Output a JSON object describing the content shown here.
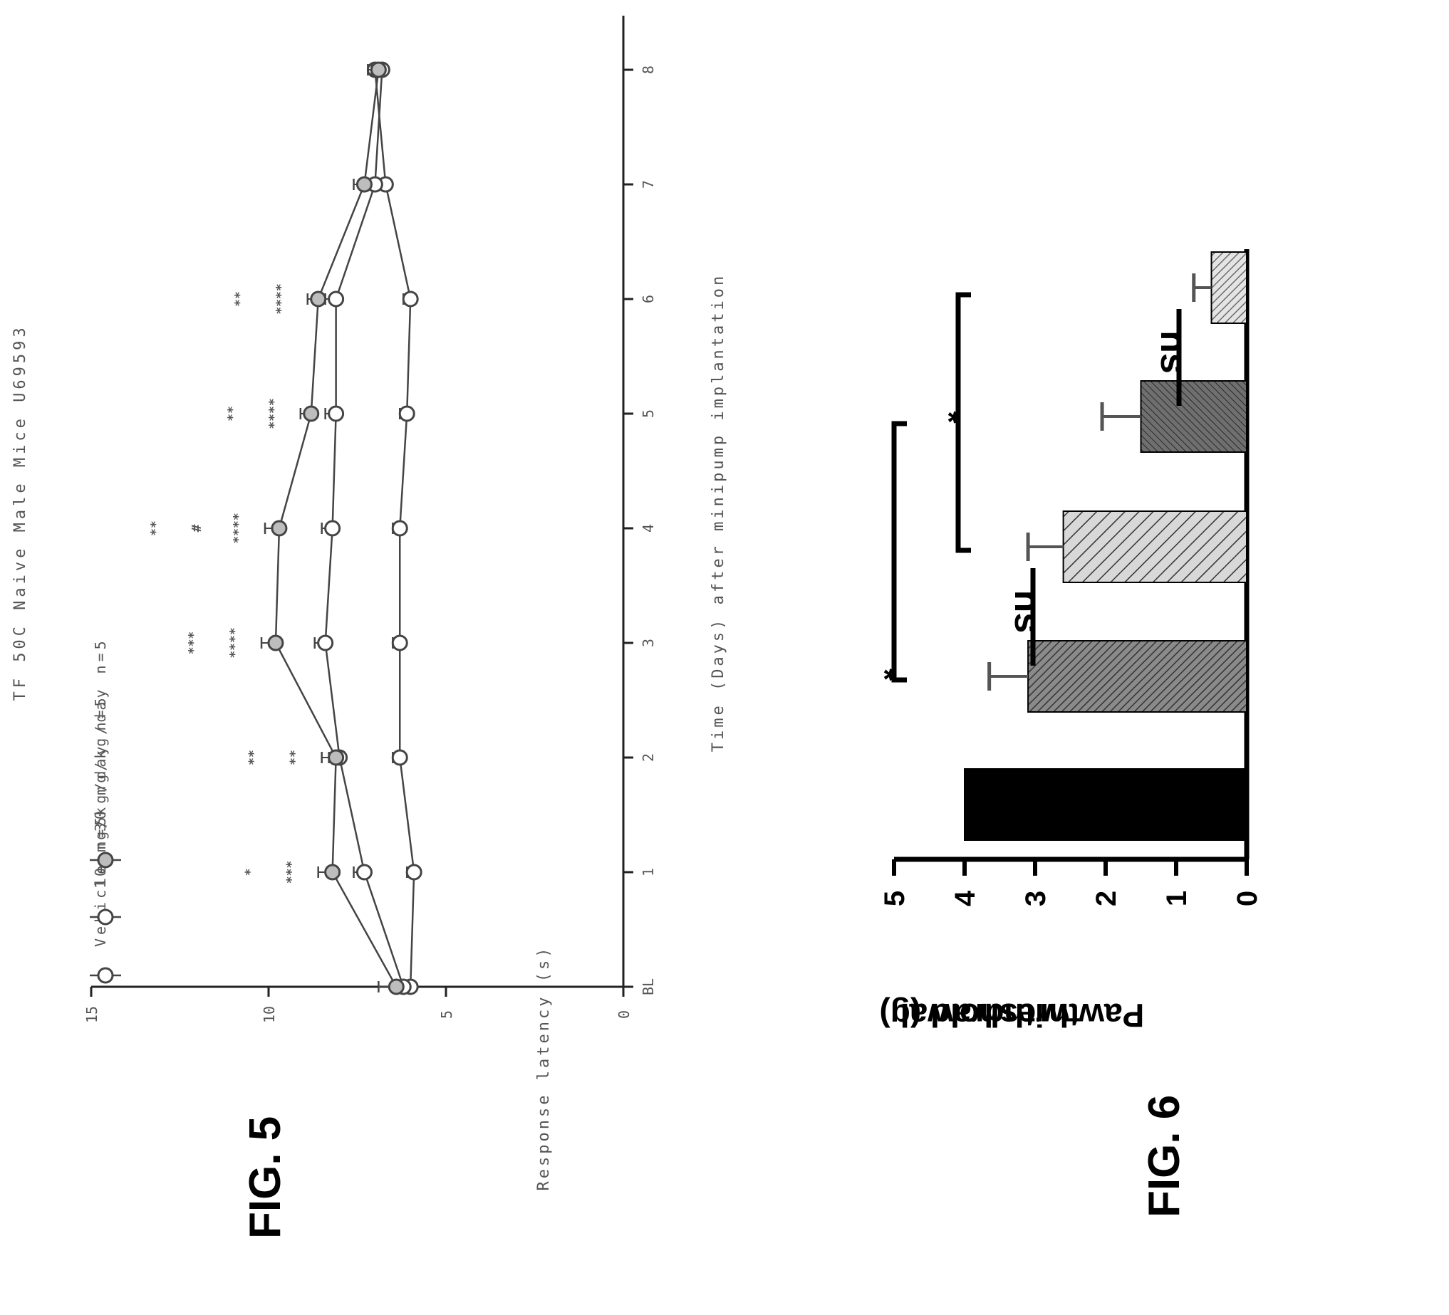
{
  "figures": {
    "fig5_label": "FIG. 5",
    "fig6_label": "FIG. 6"
  },
  "chart_data": [
    {
      "type": "line",
      "title": "TF 50C Naive Male Mice U69593",
      "xlabel": "Time (Days) after minipump implantation",
      "ylabel": "Response latency (s)",
      "ylim": [
        0,
        15
      ],
      "yticks": [
        "0",
        "5",
        "10",
        "15"
      ],
      "x": [
        "BL",
        "1",
        "2",
        "3",
        "4",
        "5",
        "6",
        "7",
        "8"
      ],
      "legend_placement": "top-left",
      "series": [
        {
          "name": "Vehicle n=5",
          "values": [
            6.0,
            5.9,
            6.3,
            6.3,
            6.3,
            6.1,
            6.0,
            6.7,
            7.0
          ],
          "errors": [
            0.2,
            0.2,
            0.2,
            0.2,
            0.2,
            0.2,
            0.2,
            0.2,
            0.2
          ]
        },
        {
          "name": "10 mg/kg/day n=5",
          "values": [
            6.2,
            7.3,
            8.0,
            8.4,
            8.2,
            8.1,
            8.1,
            7.0,
            6.8
          ],
          "errors": [
            0.2,
            0.3,
            0.3,
            0.3,
            0.3,
            0.3,
            0.3,
            0.3,
            0.3
          ]
        },
        {
          "name": "30 mg/kg/day n=5",
          "values": [
            6.4,
            8.2,
            8.1,
            9.8,
            9.7,
            8.8,
            8.6,
            7.3,
            6.9
          ],
          "errors": [
            0.5,
            0.4,
            0.4,
            0.4,
            0.4,
            0.3,
            0.3,
            0.3,
            0.3
          ]
        }
      ],
      "annotations": [
        {
          "x": "1",
          "text": "***"
        },
        {
          "x": "1",
          "text": "*"
        },
        {
          "x": "2",
          "text": "**"
        },
        {
          "x": "2",
          "text": "**"
        },
        {
          "x": "3",
          "text": "****"
        },
        {
          "x": "3",
          "text": "***"
        },
        {
          "x": "4",
          "text": "****"
        },
        {
          "x": "4",
          "text": "#"
        },
        {
          "x": "4",
          "text": "**"
        },
        {
          "x": "5",
          "text": "****"
        },
        {
          "x": "5",
          "text": "**"
        },
        {
          "x": "6",
          "text": "****"
        },
        {
          "x": "6",
          "text": "**"
        }
      ]
    },
    {
      "type": "bar",
      "ylabel": "Paw withdrawal threshold (g)",
      "ylim": [
        0,
        5
      ],
      "yticks": [
        "0",
        "1",
        "2",
        "3",
        "4",
        "5"
      ],
      "categories": [
        "",
        "",
        "",
        "",
        ""
      ],
      "values": [
        4.0,
        3.1,
        2.6,
        1.5,
        0.5
      ],
      "errors": [
        0,
        0.55,
        0.5,
        0.55,
        0.25
      ],
      "colors": [
        "#000000",
        "#5a5a5a",
        "#9a9a9a",
        "#7a7a7a",
        "#c4c4c4"
      ],
      "significance": [
        {
          "from": 1,
          "to": 2,
          "label": "ns"
        },
        {
          "from": 1,
          "to": 3,
          "label": "*"
        },
        {
          "from": 2,
          "to": 4,
          "label": "*"
        },
        {
          "from": 3,
          "to": 4,
          "label": "ns"
        }
      ]
    }
  ]
}
